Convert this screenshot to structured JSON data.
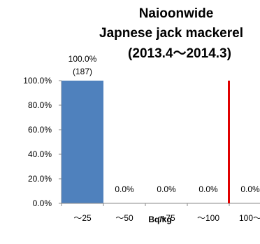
{
  "chart_data": {
    "type": "bar",
    "title_lines": [
      "Naioonwide",
      "Japnese jack mackerel",
      "(2013.4〜2014.3)"
    ],
    "xlabel": "Bq/kg",
    "ylabel": "",
    "categories": [
      "〜25",
      "〜50",
      "〜75",
      "〜100",
      "100〜"
    ],
    "values": [
      100.0,
      0.0,
      0.0,
      0.0,
      0.0
    ],
    "data_labels": [
      "100.0%",
      "0.0%",
      "0.0%",
      "0.0%",
      "0.0%"
    ],
    "count_label": "(187)",
    "ylim": [
      0,
      100
    ],
    "yticks": [
      "0.0%",
      "20.0%",
      "40.0%",
      "60.0%",
      "80.0%",
      "100.0%"
    ],
    "grid": false,
    "legend": "none",
    "reference_line": {
      "between": [
        "〜100",
        "100〜"
      ]
    },
    "colors": {
      "bar": "#4f81bd",
      "reference_line": "#e00000",
      "axis": "#888888"
    }
  }
}
